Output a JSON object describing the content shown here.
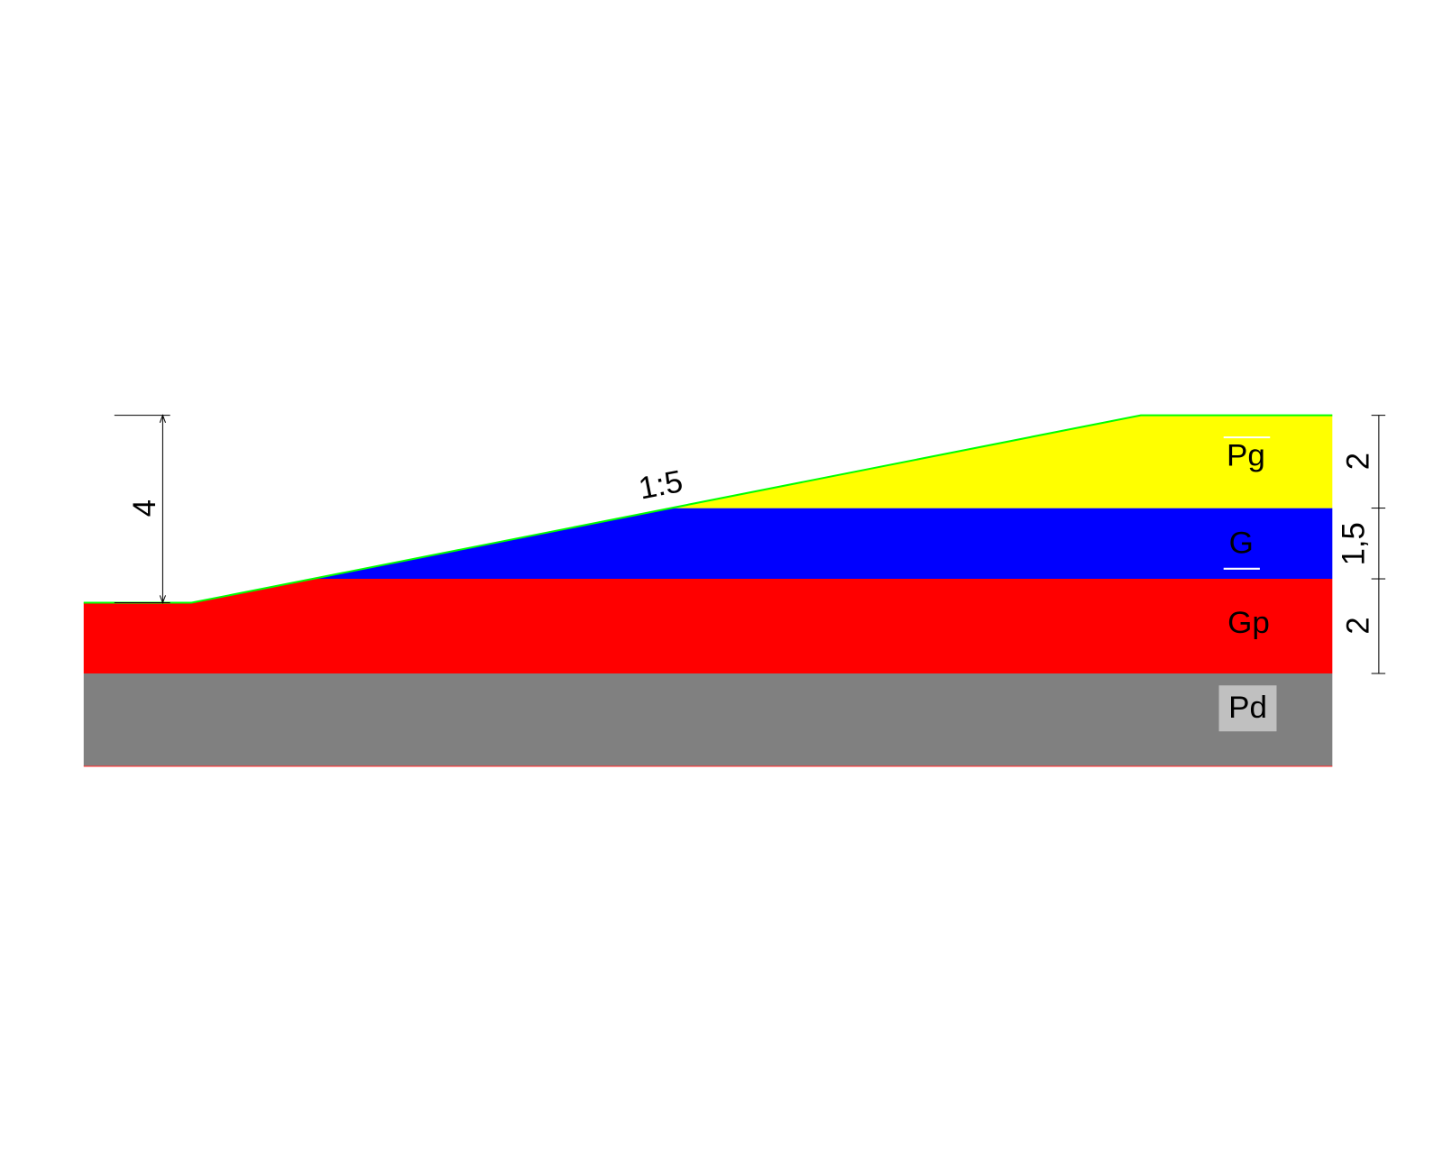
{
  "layers": [
    {
      "label": "Pg"
    },
    {
      "label": "G"
    },
    {
      "label": "Gp"
    },
    {
      "label": "Pd"
    }
  ],
  "slope": "1:5",
  "height_dimension": "4",
  "layer_dimensions": [
    "2",
    "1,5",
    "2"
  ]
}
